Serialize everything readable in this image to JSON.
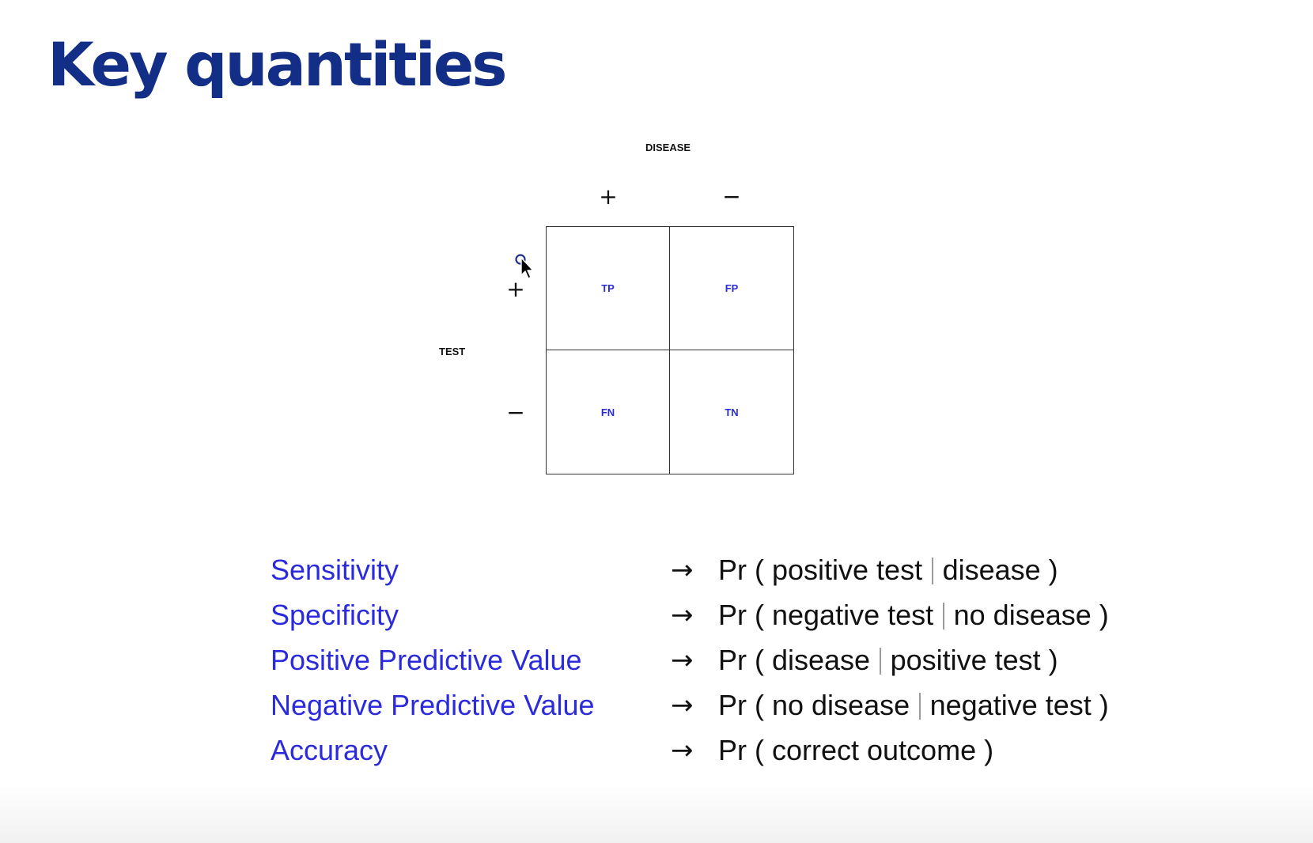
{
  "slide": {
    "title": "Key quantities"
  },
  "matrix": {
    "column_axis_label": "DISEASE",
    "row_axis_label": "TEST",
    "column_headers": [
      "+",
      "−"
    ],
    "row_headers": [
      "+",
      "−"
    ],
    "cells": {
      "top_left": "TP",
      "top_right": "FP",
      "bottom_left": "FN",
      "bottom_right": "TN"
    },
    "cell_text_color": "#2b2bdc"
  },
  "definitions": [
    {
      "term": "Sensitivity",
      "formula_prefix": "Pr ( positive test",
      "formula_suffix": "disease )"
    },
    {
      "term": "Specificity",
      "formula_prefix": "Pr ( negative test",
      "formula_suffix": "no disease )"
    },
    {
      "term": "Positive Predictive Value",
      "formula_prefix": "Pr ( disease",
      "formula_suffix": "positive test )"
    },
    {
      "term": "Negative Predictive Value",
      "formula_prefix": "Pr ( no disease",
      "formula_suffix": "negative test )"
    },
    {
      "term": "Accuracy",
      "formula_prefix": "Pr ( correct outcome )",
      "formula_suffix": ""
    }
  ],
  "arrow_symbol": "→",
  "colors": {
    "title": "#132e86",
    "term": "#2b2bdc",
    "text": "#111111"
  },
  "icons": {
    "cursor": "mouse-pointer-icon",
    "arrow": "right-arrow-icon"
  }
}
